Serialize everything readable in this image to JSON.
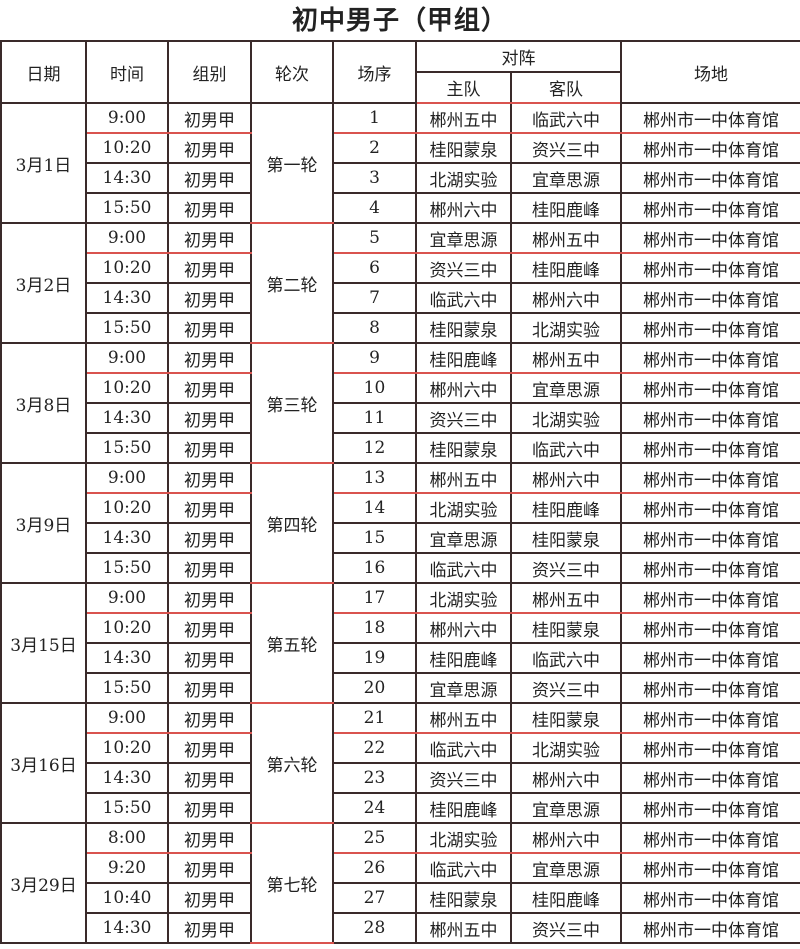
{
  "title": "初中男子（甲组）",
  "headers": {
    "date": "日期",
    "time": "时间",
    "group": "组别",
    "round": "轮次",
    "seq": "场序",
    "matchup": "对阵",
    "home": "主队",
    "away": "客队",
    "venue": "场地"
  },
  "days": [
    {
      "date": "3月1日",
      "round": "第一轮",
      "matches": [
        {
          "time": "9:00",
          "group": "初男甲",
          "seq": "1",
          "home": "郴州五中",
          "away": "临武六中",
          "venue": "郴州市一中体育馆"
        },
        {
          "time": "10:20",
          "group": "初男甲",
          "seq": "2",
          "home": "桂阳蒙泉",
          "away": "资兴三中",
          "venue": "郴州市一中体育馆"
        },
        {
          "time": "14:30",
          "group": "初男甲",
          "seq": "3",
          "home": "北湖实验",
          "away": "宜章思源",
          "venue": "郴州市一中体育馆"
        },
        {
          "time": "15:50",
          "group": "初男甲",
          "seq": "4",
          "home": "郴州六中",
          "away": "桂阳鹿峰",
          "venue": "郴州市一中体育馆"
        }
      ]
    },
    {
      "date": "3月2日",
      "round": "第二轮",
      "matches": [
        {
          "time": "9:00",
          "group": "初男甲",
          "seq": "5",
          "home": "宜章思源",
          "away": "郴州五中",
          "venue": "郴州市一中体育馆"
        },
        {
          "time": "10:20",
          "group": "初男甲",
          "seq": "6",
          "home": "资兴三中",
          "away": "桂阳鹿峰",
          "venue": "郴州市一中体育馆"
        },
        {
          "time": "14:30",
          "group": "初男甲",
          "seq": "7",
          "home": "临武六中",
          "away": "郴州六中",
          "venue": "郴州市一中体育馆"
        },
        {
          "time": "15:50",
          "group": "初男甲",
          "seq": "8",
          "home": "桂阳蒙泉",
          "away": "北湖实验",
          "venue": "郴州市一中体育馆"
        }
      ]
    },
    {
      "date": "3月8日",
      "round": "第三轮",
      "matches": [
        {
          "time": "9:00",
          "group": "初男甲",
          "seq": "9",
          "home": "桂阳鹿峰",
          "away": "郴州五中",
          "venue": "郴州市一中体育馆"
        },
        {
          "time": "10:20",
          "group": "初男甲",
          "seq": "10",
          "home": "郴州六中",
          "away": "宜章思源",
          "venue": "郴州市一中体育馆"
        },
        {
          "time": "14:30",
          "group": "初男甲",
          "seq": "11",
          "home": "资兴三中",
          "away": "北湖实验",
          "venue": "郴州市一中体育馆"
        },
        {
          "time": "15:50",
          "group": "初男甲",
          "seq": "12",
          "home": "桂阳蒙泉",
          "away": "临武六中",
          "venue": "郴州市一中体育馆"
        }
      ]
    },
    {
      "date": "3月9日",
      "round": "第四轮",
      "matches": [
        {
          "time": "9:00",
          "group": "初男甲",
          "seq": "13",
          "home": "郴州五中",
          "away": "郴州六中",
          "venue": "郴州市一中体育馆"
        },
        {
          "time": "10:20",
          "group": "初男甲",
          "seq": "14",
          "home": "北湖实验",
          "away": "桂阳鹿峰",
          "venue": "郴州市一中体育馆"
        },
        {
          "time": "14:30",
          "group": "初男甲",
          "seq": "15",
          "home": "宜章思源",
          "away": "桂阳蒙泉",
          "venue": "郴州市一中体育馆"
        },
        {
          "time": "15:50",
          "group": "初男甲",
          "seq": "16",
          "home": "临武六中",
          "away": "资兴三中",
          "venue": "郴州市一中体育馆"
        }
      ]
    },
    {
      "date": "3月15日",
      "round": "第五轮",
      "matches": [
        {
          "time": "9:00",
          "group": "初男甲",
          "seq": "17",
          "home": "北湖实验",
          "away": "郴州五中",
          "venue": "郴州市一中体育馆"
        },
        {
          "time": "10:20",
          "group": "初男甲",
          "seq": "18",
          "home": "郴州六中",
          "away": "桂阳蒙泉",
          "venue": "郴州市一中体育馆"
        },
        {
          "time": "14:30",
          "group": "初男甲",
          "seq": "19",
          "home": "桂阳鹿峰",
          "away": "临武六中",
          "venue": "郴州市一中体育馆"
        },
        {
          "time": "15:50",
          "group": "初男甲",
          "seq": "20",
          "home": "宜章思源",
          "away": "资兴三中",
          "venue": "郴州市一中体育馆"
        }
      ]
    },
    {
      "date": "3月16日",
      "round": "第六轮",
      "matches": [
        {
          "time": "9:00",
          "group": "初男甲",
          "seq": "21",
          "home": "郴州五中",
          "away": "桂阳蒙泉",
          "venue": "郴州市一中体育馆"
        },
        {
          "time": "10:20",
          "group": "初男甲",
          "seq": "22",
          "home": "临武六中",
          "away": "北湖实验",
          "venue": "郴州市一中体育馆"
        },
        {
          "time": "14:30",
          "group": "初男甲",
          "seq": "23",
          "home": "资兴三中",
          "away": "郴州六中",
          "venue": "郴州市一中体育馆"
        },
        {
          "time": "15:50",
          "group": "初男甲",
          "seq": "24",
          "home": "桂阳鹿峰",
          "away": "宜章思源",
          "venue": "郴州市一中体育馆"
        }
      ]
    },
    {
      "date": "3月29日",
      "round": "第七轮",
      "matches": [
        {
          "time": "8:00",
          "group": "初男甲",
          "seq": "25",
          "home": "北湖实验",
          "away": "郴州六中",
          "venue": "郴州市一中体育馆"
        },
        {
          "time": "9:20",
          "group": "初男甲",
          "seq": "26",
          "home": "临武六中",
          "away": "宜章思源",
          "venue": "郴州市一中体育馆"
        },
        {
          "time": "10:40",
          "group": "初男甲",
          "seq": "27",
          "home": "桂阳蒙泉",
          "away": "桂阳鹿峰",
          "venue": "郴州市一中体育馆"
        },
        {
          "time": "14:30",
          "group": "初男甲",
          "seq": "28",
          "home": "郴州五中",
          "away": "资兴三中",
          "venue": "郴州市一中体育馆"
        }
      ]
    }
  ]
}
